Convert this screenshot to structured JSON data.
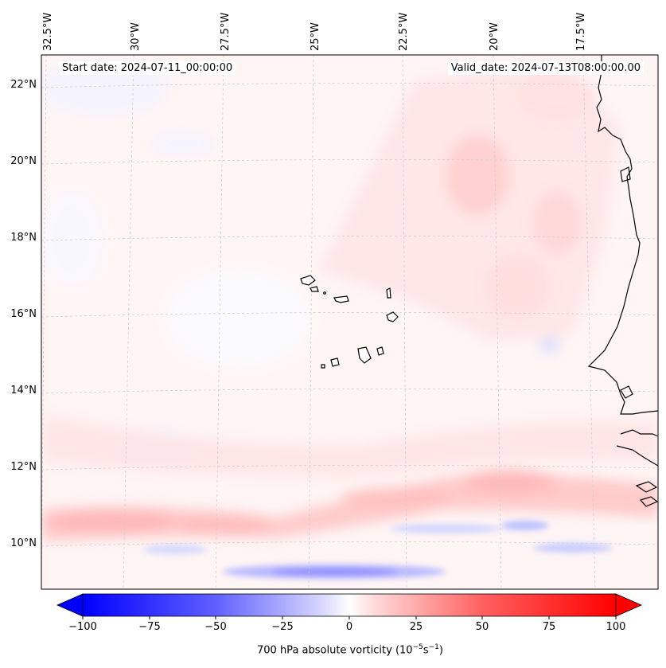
{
  "header": {
    "start_date": "Start date: 2024-07-11_00:00:00",
    "valid_date": "Valid_date: 2024-07-13T08:00:00.00"
  },
  "axes": {
    "lon_labels": [
      "32.5°W",
      "30°W",
      "27.5°W",
      "25°W",
      "22.5°W",
      "20°W",
      "17.5°W"
    ],
    "lat_labels": [
      "22°N",
      "20°N",
      "18°N",
      "16°N",
      "14°N",
      "12°N",
      "10°N"
    ]
  },
  "colorbar": {
    "ticks": [
      "−100",
      "−75",
      "−50",
      "−25",
      "0",
      "25",
      "50",
      "75",
      "100"
    ],
    "label": "700 hPa absolute vorticity (10",
    "label_exp1": "−5",
    "label_mid": "s",
    "label_exp2": "−1",
    "label_end": ")",
    "min_color": "#0000ff",
    "mid_color": "#ffffff",
    "max_color": "#ff0000"
  }
}
